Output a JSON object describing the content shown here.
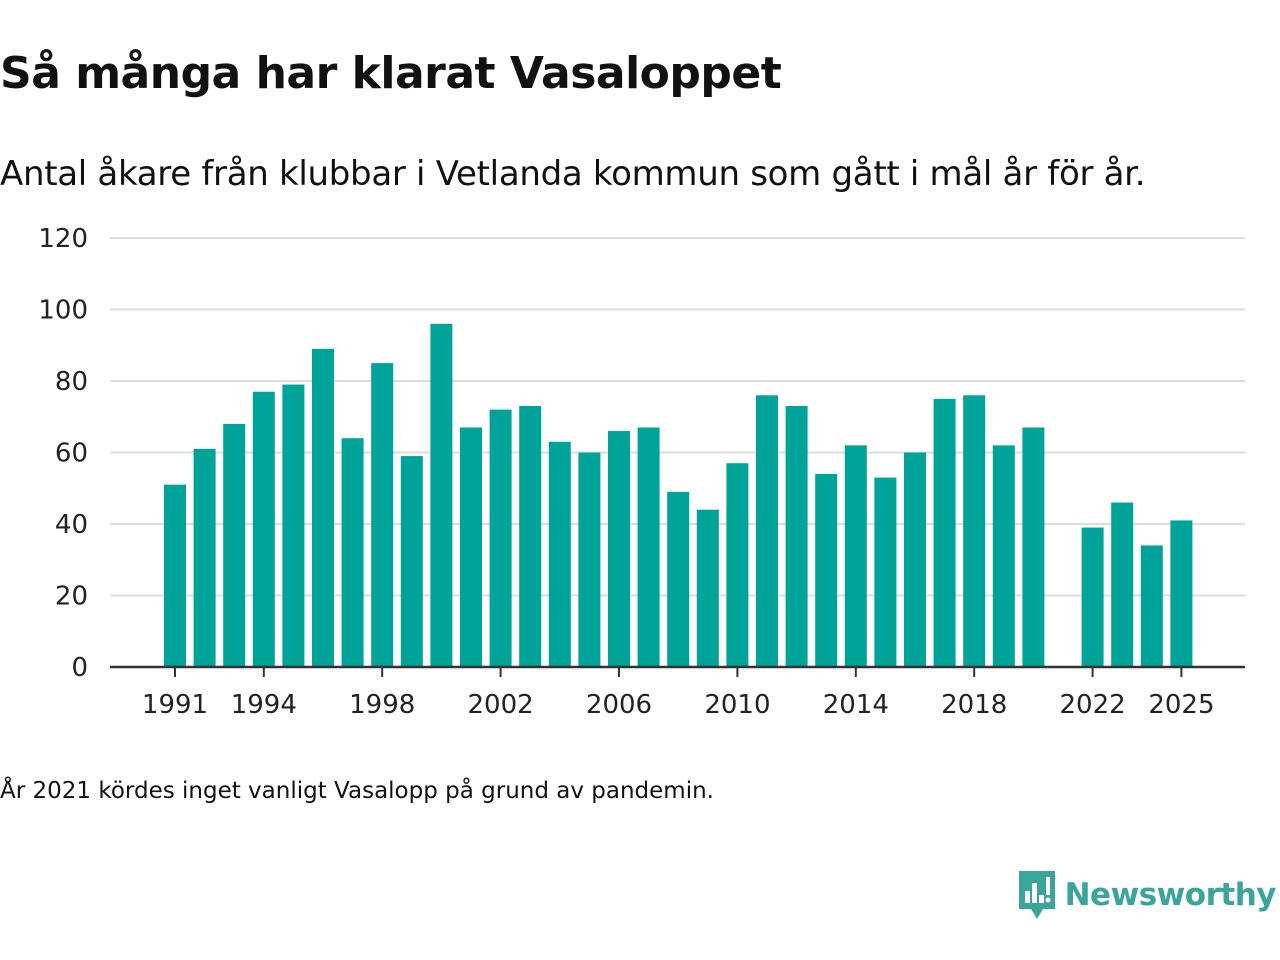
{
  "header": {
    "title": "Så många har klarat Vasaloppet",
    "subtitle": "Antal åkare från klubbar i Vetlanda kommun som gått i mål år för år."
  },
  "footer": {
    "note": "År 2021 kördes inget vanligt Vasalopp på grund av pandemin.",
    "brand": "Newsworthy"
  },
  "colors": {
    "bar": "#00a398",
    "grid": "#dddddd",
    "axis": "#333333",
    "brand": "#3aa59a"
  },
  "chart_data": {
    "type": "bar",
    "title": "Så många har klarat Vasaloppet",
    "subtitle": "Antal åkare från klubbar i Vetlanda kommun som gått i mål år för år.",
    "xlabel": "",
    "ylabel": "",
    "ylim": [
      0,
      120
    ],
    "yticks": [
      0,
      20,
      40,
      60,
      80,
      100,
      120
    ],
    "xtick_labels": [
      "1991",
      "1994",
      "1998",
      "2002",
      "2006",
      "2010",
      "2014",
      "2018",
      "2022",
      "2025"
    ],
    "grid": true,
    "categories": [
      1991,
      1992,
      1993,
      1994,
      1995,
      1996,
      1997,
      1998,
      1999,
      2000,
      2001,
      2002,
      2003,
      2004,
      2005,
      2006,
      2007,
      2008,
      2009,
      2010,
      2011,
      2012,
      2013,
      2014,
      2015,
      2016,
      2017,
      2018,
      2019,
      2020,
      2021,
      2022,
      2023,
      2024,
      2025
    ],
    "values": [
      51,
      61,
      68,
      77,
      79,
      89,
      64,
      85,
      59,
      96,
      67,
      72,
      73,
      63,
      60,
      66,
      67,
      49,
      44,
      57,
      76,
      73,
      54,
      62,
      53,
      60,
      75,
      76,
      62,
      67,
      null,
      39,
      46,
      34,
      41
    ]
  }
}
